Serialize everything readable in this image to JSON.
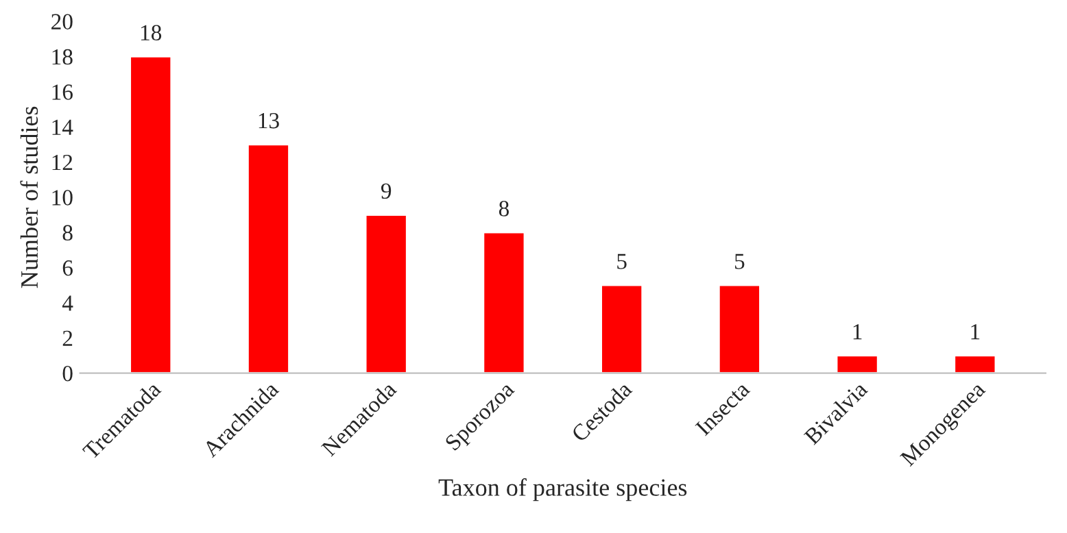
{
  "chart_data": {
    "type": "bar",
    "xlabel": "Taxon of parasite species",
    "ylabel": "Number of studies",
    "categories": [
      "Trematoda",
      "Arachnida",
      "Nematoda",
      "Sporozoa",
      "Cestoda",
      "Insecta",
      "Bivalvia",
      "Monogenea"
    ],
    "values": [
      18,
      13,
      9,
      8,
      5,
      5,
      1,
      1
    ],
    "color": "#ff0000",
    "ylim": [
      0,
      20
    ],
    "yticks": [
      0,
      2,
      4,
      6,
      8,
      10,
      12,
      14,
      16,
      18,
      20
    ],
    "grid": false,
    "data_labels": true
  }
}
